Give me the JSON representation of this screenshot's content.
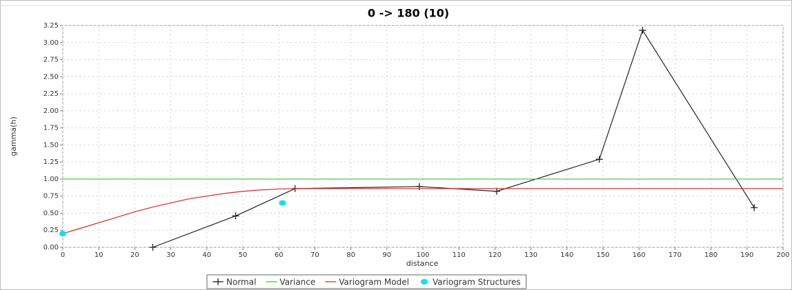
{
  "chart_data": {
    "type": "line",
    "title": "0 -> 180 (10)",
    "xlabel": "distance",
    "ylabel": "gamma(h)",
    "xlim": [
      0,
      200
    ],
    "ylim": [
      0,
      3.25
    ],
    "xticks": [
      0,
      10,
      20,
      30,
      40,
      50,
      60,
      70,
      80,
      90,
      100,
      110,
      120,
      130,
      140,
      150,
      160,
      170,
      180,
      190,
      200
    ],
    "yticks": [
      {
        "value": 0,
        "label": "0.00"
      },
      {
        "value": 0.25,
        "label": "0.25"
      },
      {
        "value": 0.5,
        "label": "0.50"
      },
      {
        "value": 0.75,
        "label": "0.75"
      },
      {
        "value": 1,
        "label": "1.00"
      },
      {
        "value": 1.25,
        "label": "1.25"
      },
      {
        "value": 1.5,
        "label": "1.50"
      },
      {
        "value": 1.75,
        "label": "1.75"
      },
      {
        "value": 2,
        "label": "2.00"
      },
      {
        "value": 2.25,
        "label": "2.25"
      },
      {
        "value": 2.5,
        "label": "2.50"
      },
      {
        "value": 2.75,
        "label": "2.75"
      },
      {
        "value": 3,
        "label": "3.00"
      },
      {
        "value": 3.25,
        "label": "3.25"
      }
    ],
    "grid": true,
    "legend": "bottom",
    "series": [
      {
        "name": "Normal",
        "color": "#222222",
        "style": "line-markers",
        "x": [
          25,
          48,
          64.5,
          99,
          120.5,
          149,
          161,
          192
        ],
        "values": [
          0,
          0.46,
          0.86,
          0.89,
          0.82,
          1.29,
          3.18,
          0.58
        ]
      },
      {
        "name": "Variance",
        "color": "#33cc33",
        "style": "line",
        "x": [
          0,
          200
        ],
        "values": [
          1,
          1
        ]
      },
      {
        "name": "Variogram Model",
        "color": "#dd2222",
        "style": "line",
        "x": [
          0,
          5,
          10,
          15,
          20,
          25,
          30,
          35,
          40,
          45,
          50,
          55,
          60,
          65,
          200
        ],
        "values": [
          0.2,
          0.28,
          0.36,
          0.44,
          0.52,
          0.59,
          0.65,
          0.71,
          0.75,
          0.79,
          0.82,
          0.84,
          0.855,
          0.86,
          0.86
        ]
      },
      {
        "name": "Variogram Structures",
        "color": "#00e5ee",
        "style": "markers",
        "x": [
          0,
          61
        ],
        "values": [
          0.2,
          0.65
        ]
      }
    ]
  }
}
